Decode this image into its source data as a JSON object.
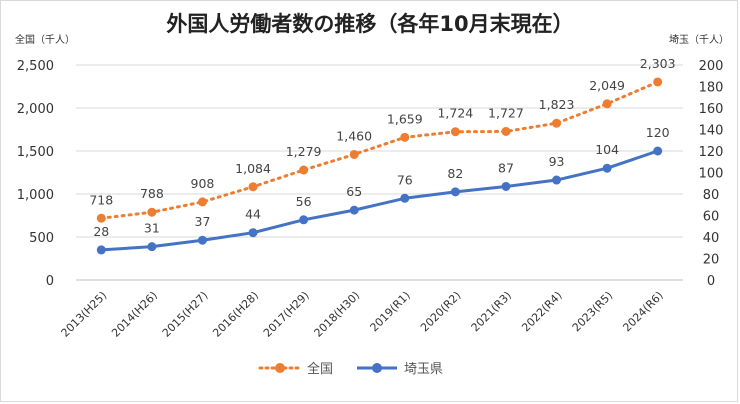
{
  "chart_data": {
    "type": "line",
    "title": "外国人労働者数の推移（各年10月末現在）",
    "ylabel_left": "全国（千人）",
    "ylabel_right": "埼玉（千人）",
    "categories": [
      "2013(H25)",
      "2014(H26)",
      "2015(H27)",
      "2016(H28)",
      "2017(H29)",
      "2018(H30)",
      "2019(R1)",
      "2020(R2)",
      "2021(R3)",
      "2022(R4)",
      "2023(R5)",
      "2024(R6)"
    ],
    "series": [
      {
        "name": "全国",
        "axis": "left",
        "values": [
          718,
          788,
          908,
          1084,
          1279,
          1460,
          1659,
          1724,
          1727,
          1823,
          2049,
          2303
        ],
        "labels": [
          "718",
          "788",
          "908",
          "1,084",
          "1,279",
          "1,460",
          "1,659",
          "1,724",
          "1,727",
          "1,823",
          "2,049",
          "2,303"
        ],
        "color": "#ED7D31",
        "style": "dotted"
      },
      {
        "name": "埼玉県",
        "axis": "right",
        "values": [
          28,
          31,
          37,
          44,
          56,
          65,
          76,
          82,
          87,
          93,
          104,
          120
        ],
        "labels": [
          "28",
          "31",
          "37",
          "44",
          "56",
          "65",
          "76",
          "82",
          "87",
          "93",
          "104",
          "120"
        ],
        "color": "#4472C4",
        "style": "solid"
      }
    ],
    "ylim_left": [
      0,
      2500
    ],
    "ylim_right": [
      0,
      200
    ],
    "yticks_left": [
      "0",
      "500",
      "1,000",
      "1,500",
      "2,000",
      "2,500"
    ],
    "yticks_right": [
      "0",
      "20",
      "40",
      "60",
      "80",
      "100",
      "120",
      "140",
      "160",
      "180",
      "200"
    ],
    "grid": true,
    "legend": "bottom"
  }
}
